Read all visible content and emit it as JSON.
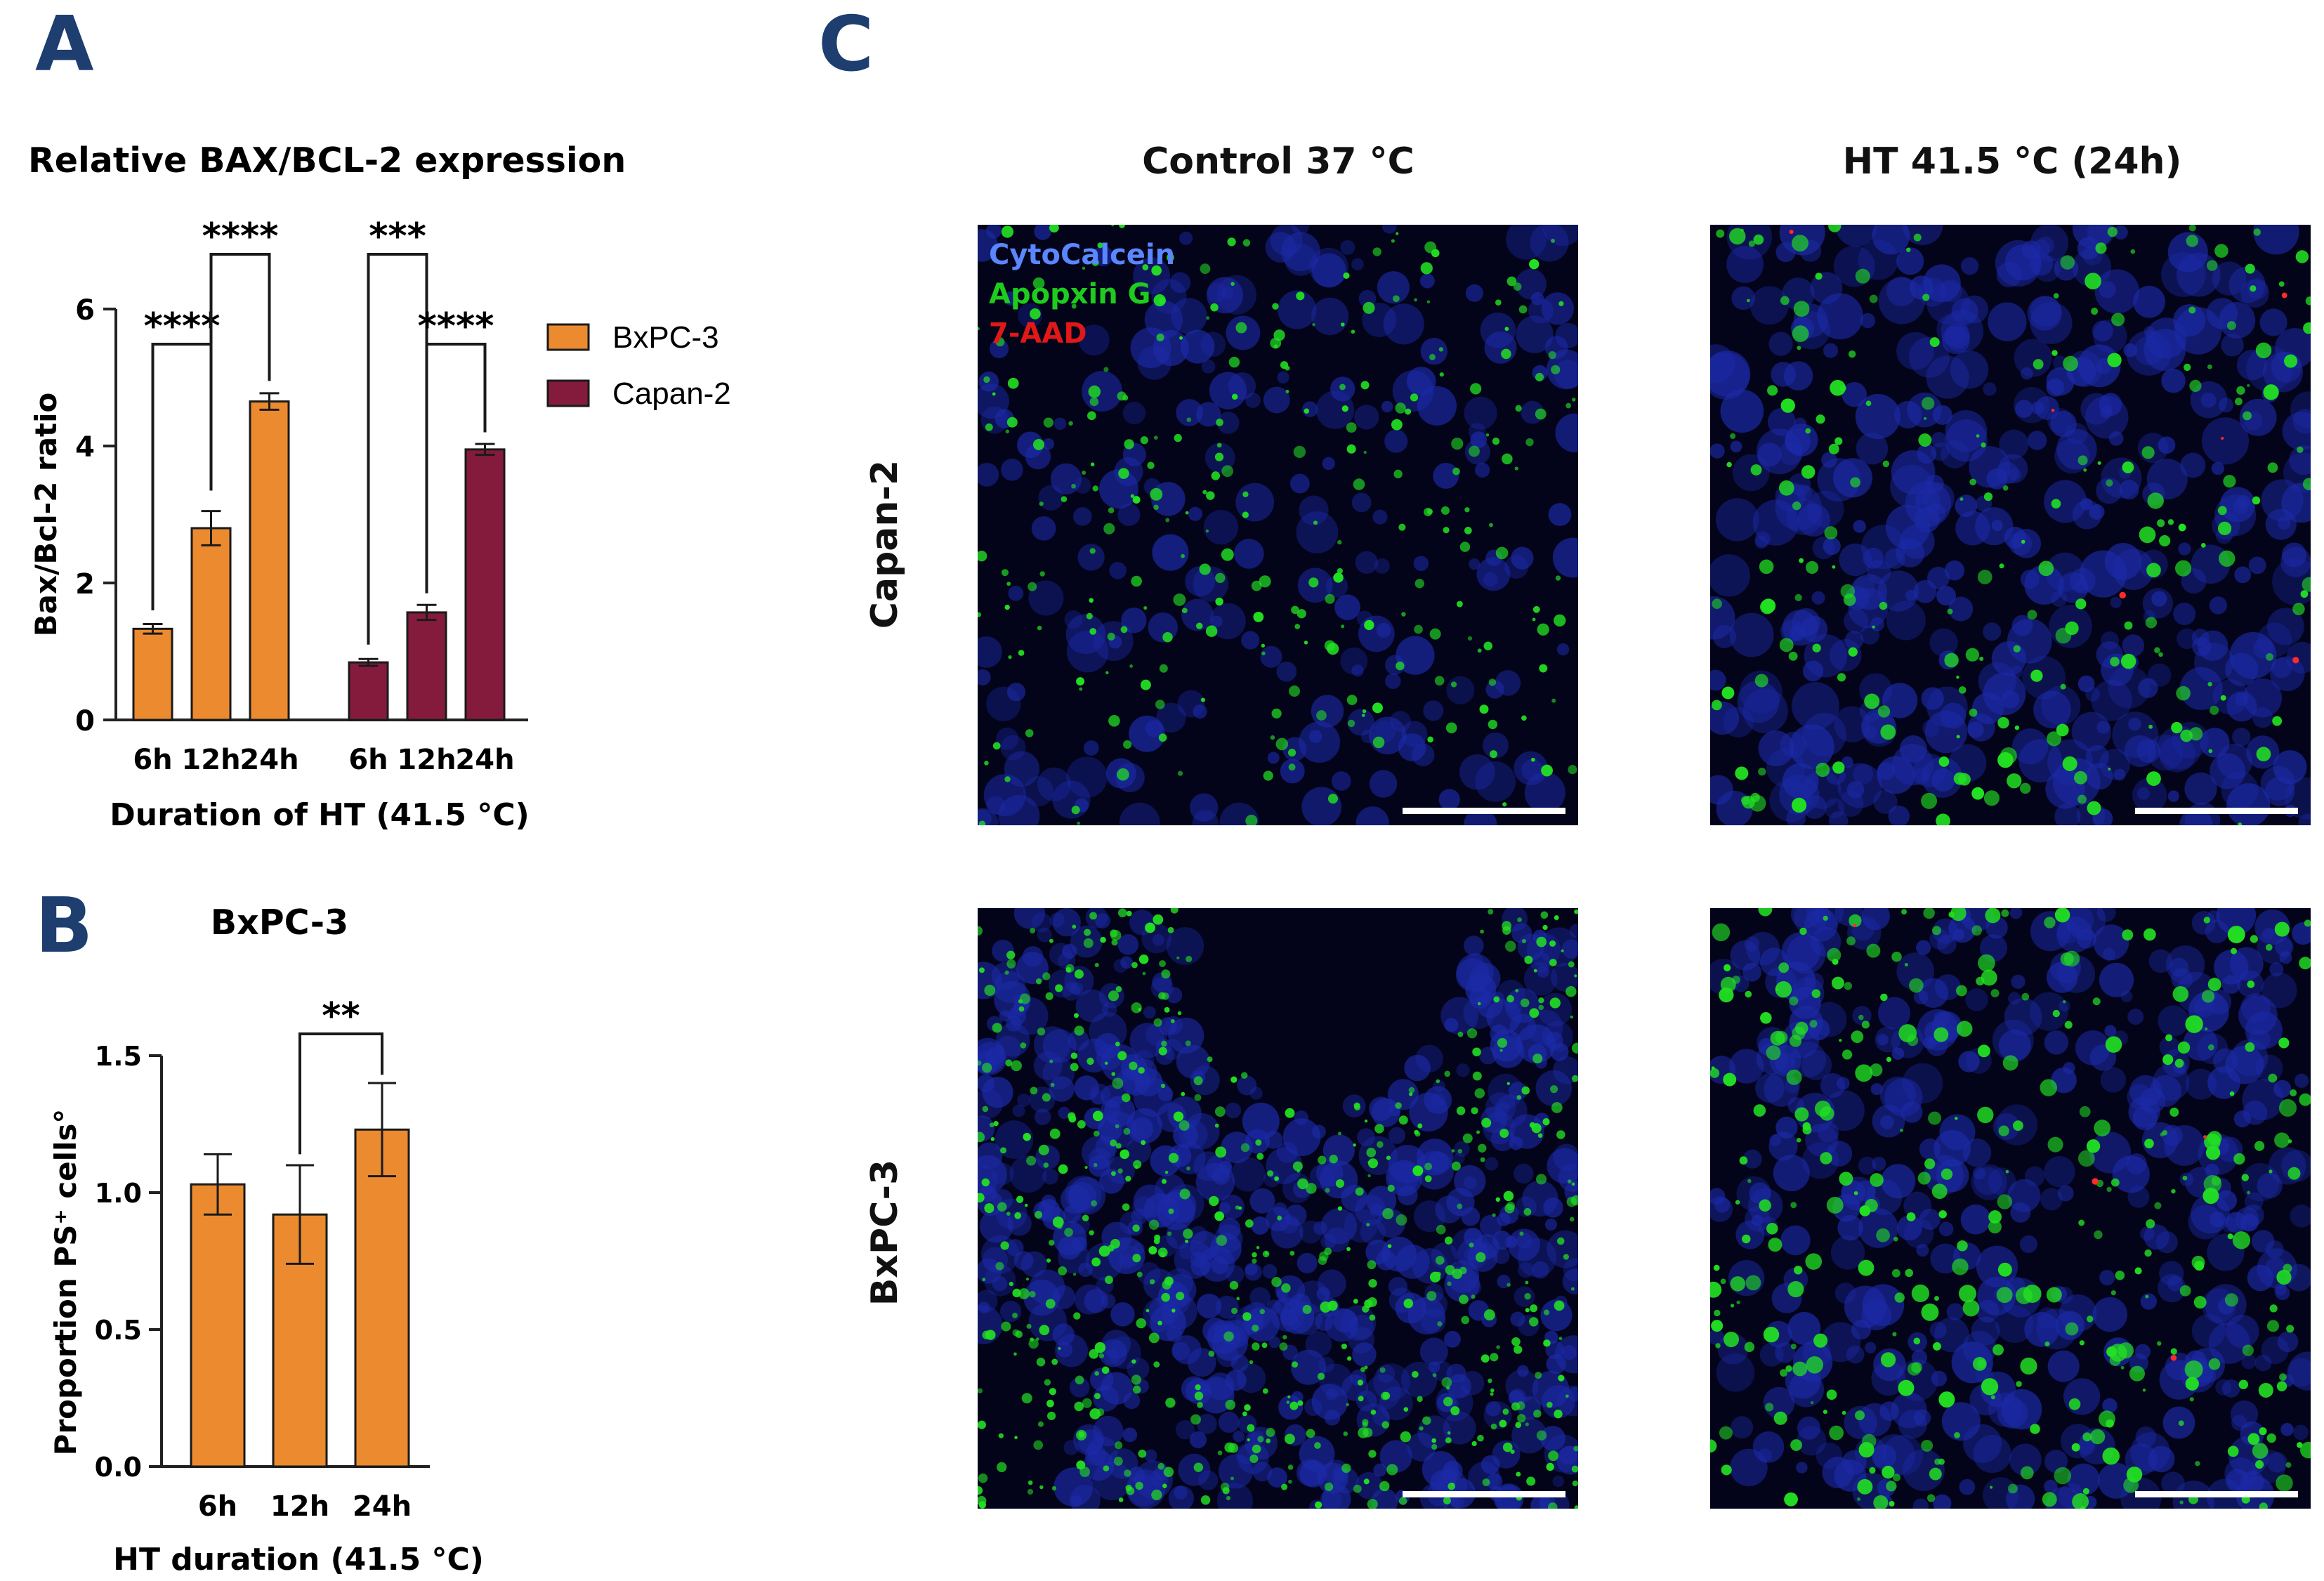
{
  "panels": {
    "A": "A",
    "B": "B",
    "C": "C"
  },
  "colors": {
    "bxpc3": "#ec8a2f",
    "capan2": "#841b3d",
    "axis": "#222222",
    "panel_letter": "#1d3e6e",
    "stain_cytocalcein": "#5a86ff",
    "stain_apopxin": "#1ecc1e",
    "stain_7aad": "#e01818"
  },
  "chart_data": [
    {
      "type": "bar",
      "title": "Relative BAX/BCL-2 expression",
      "xlabel": "Duration of HT (41.5 °C)",
      "ylabel": "Bax/Bcl-2 ratio",
      "ylim": [
        0,
        6
      ],
      "yticks": [
        "0",
        "2",
        "4",
        "6"
      ],
      "categories": [
        "6h",
        "12h",
        "24h"
      ],
      "series": [
        {
          "name": "BxPC-3",
          "values": [
            1.33,
            2.8,
            4.65
          ],
          "errors": [
            0.07,
            0.25,
            0.12
          ]
        },
        {
          "name": "Capan-2",
          "values": [
            0.84,
            1.57,
            3.95
          ],
          "errors": [
            0.05,
            0.11,
            0.08
          ]
        }
      ],
      "legend": [
        "BxPC-3",
        "Capan-2"
      ],
      "legend_position": "right",
      "significance": [
        {
          "series": "BxPC-3",
          "from": "6h",
          "to": "12h",
          "label": "****"
        },
        {
          "series": "BxPC-3",
          "from": "12h",
          "to": "24h",
          "label": "****"
        },
        {
          "series": "Capan-2",
          "from": "6h",
          "to": "12h",
          "label": "***"
        },
        {
          "series": "Capan-2",
          "from": "12h",
          "to": "24h",
          "label": "****"
        }
      ]
    },
    {
      "type": "bar",
      "title": "BxPC-3",
      "xlabel": "HT duration (41.5 °C)",
      "ylabel": "Proportion PS⁺ cells°",
      "ylim": [
        0,
        1.5
      ],
      "yticks": [
        "0.0",
        "0.5",
        "1.0",
        "1.5"
      ],
      "categories": [
        "6h",
        "12h",
        "24h"
      ],
      "values": [
        1.03,
        0.92,
        1.23
      ],
      "errors": [
        0.11,
        0.18,
        0.17
      ],
      "significance": [
        {
          "from": "12h",
          "to": "24h",
          "label": "**"
        }
      ]
    }
  ],
  "microscopy": {
    "col_titles": [
      "Control 37 °C",
      "HT 41.5 °C (24h)"
    ],
    "row_labels": [
      "Capan-2",
      "BxPC-3"
    ],
    "stain_legend": [
      "CytoCalcein",
      "Apopxin  G",
      "7-AAD"
    ]
  }
}
